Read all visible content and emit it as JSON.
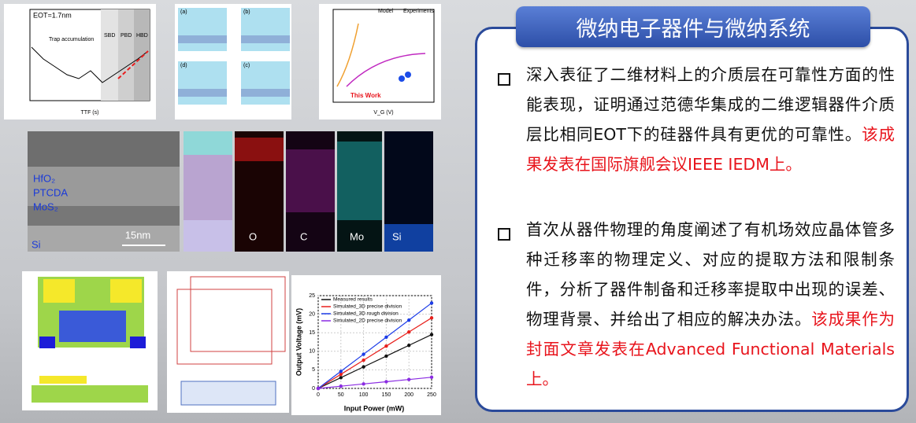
{
  "panel": {
    "title": "微纳电子器件与微纳系统",
    "bullets": [
      {
        "text": "深入表征了二维材料上的介质层在可靠性方面的性能表现，证明通过范德华集成的二维逻辑器件介质层比相同EOT下的硅器件具有更优的可靠性。",
        "highlight": "该成果发表在国际旗舰会议IEEE IEDM上。"
      },
      {
        "text": "首次从器件物理的角度阐述了有机场效应晶体管多种迁移率的物理定义、对应的提取方法和限制条件，分析了器件制备和迁移率提取中出现的误差、物理背景、并给出了相应的解决办法。",
        "highlight": "该成果作为封面文章发表在Advanced Functional Materials上。"
      }
    ]
  },
  "figures": {
    "breakdown": {
      "labels": [
        "EOT=1.7nm",
        "Trap accumulation",
        "SBD",
        "PBD",
        "HBD"
      ],
      "x_label": "TTF (s)"
    },
    "schematic": {
      "labels": [
        "(a)",
        "(b)",
        "(c)",
        "(d)"
      ]
    },
    "comparison": {
      "labels": [
        "Model",
        "Experiments",
        "This Work"
      ],
      "x_label": "V_G (V)"
    },
    "tem": {
      "labels": [
        "HfO₂",
        "PTCDA",
        "MoS₂",
        "Si"
      ],
      "scale": "15nm"
    },
    "eds": {
      "labels": [
        "O",
        "C",
        "Mo",
        "Si"
      ]
    },
    "chart_data": {
      "type": "line",
      "x_label": "Input Power (mW)",
      "y_label": "Output Voltage (mV)",
      "x": [
        0,
        50,
        100,
        150,
        200,
        250
      ],
      "xlim": [
        0,
        250
      ],
      "xticks": [
        0,
        50,
        100,
        150,
        200,
        250
      ],
      "ylim": [
        0,
        25
      ],
      "yticks": [
        0,
        5,
        10,
        15,
        20,
        25
      ],
      "series": [
        {
          "name": "Measured results",
          "color": "#111111",
          "values": [
            0,
            2.9,
            5.8,
            8.7,
            11.6,
            14.5
          ]
        },
        {
          "name": "Simulated_3D precise division",
          "color": "#e8201c",
          "values": [
            0,
            3.8,
            7.6,
            11.4,
            15.2,
            19
          ]
        },
        {
          "name": "Simulated_3D rough division",
          "color": "#1c3ce8",
          "values": [
            0,
            4.6,
            9.2,
            13.8,
            18.4,
            23
          ]
        },
        {
          "name": "Simulated_2D precise division",
          "color": "#8a2be2",
          "values": [
            0,
            0.6,
            1.2,
            1.8,
            2.4,
            3
          ]
        }
      ]
    }
  }
}
